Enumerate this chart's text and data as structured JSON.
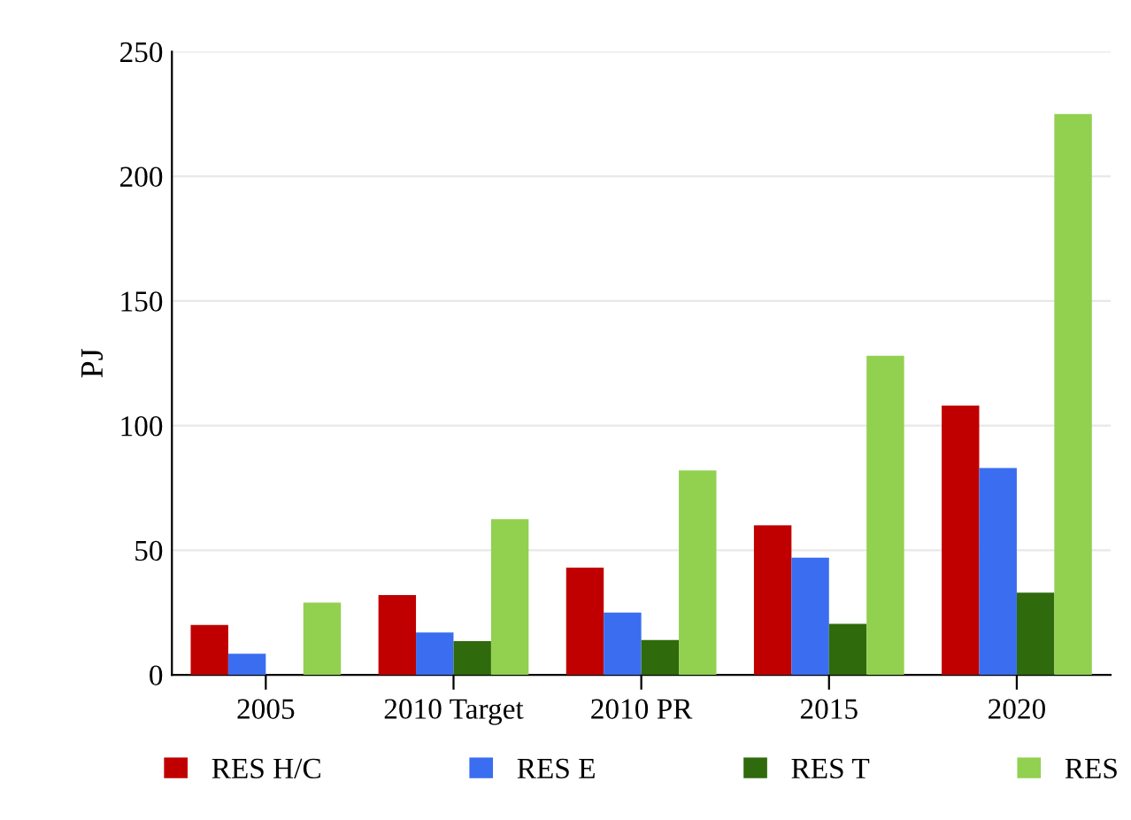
{
  "chart_data": {
    "type": "bar",
    "ylabel": "PJ",
    "categories": [
      "2005",
      "2010 Target",
      "2010 PR",
      "2015",
      "2020"
    ],
    "series": [
      {
        "name": "RES H/C",
        "color": "#c00000",
        "values": [
          20,
          32,
          43,
          60,
          108
        ]
      },
      {
        "name": "RES E",
        "color": "#3a6df0",
        "values": [
          8.5,
          17,
          25,
          47,
          83
        ]
      },
      {
        "name": "RES T",
        "color": "#2f6a0c",
        "values": [
          null,
          13.5,
          14,
          20.5,
          33
        ]
      },
      {
        "name": "RES",
        "color": "#92d050",
        "values": [
          29,
          62.5,
          82,
          128,
          225
        ]
      }
    ],
    "ylim": [
      0,
      250
    ],
    "yticks": [
      0,
      50,
      100,
      150,
      200,
      250
    ],
    "grid": "y",
    "legend": "bottom"
  }
}
